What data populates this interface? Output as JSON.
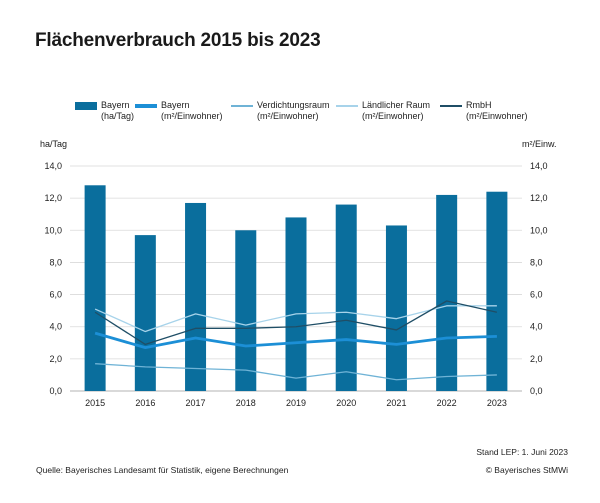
{
  "chart_data": {
    "type": "bar",
    "title": "Flächenverbrauch 2015 bis 2023",
    "categories": [
      "2015",
      "2016",
      "2017",
      "2018",
      "2019",
      "2020",
      "2021",
      "2022",
      "2023"
    ],
    "ylabel_left": "ha/Tag",
    "ylabel_right": "m²/Einw.",
    "ylim": [
      0,
      14
    ],
    "yticks": [
      "0,0",
      "2,0",
      "4,0",
      "6,0",
      "8,0",
      "10,0",
      "12,0",
      "14,0"
    ],
    "grid": true,
    "legend_position": "top",
    "bar_series": {
      "name_line1": "Bayern",
      "name_line2": "(ha/Tag)",
      "color": "#0a6e9d",
      "values": [
        12.8,
        9.7,
        11.7,
        10.0,
        10.8,
        11.6,
        10.3,
        12.2,
        12.4
      ]
    },
    "line_series": [
      {
        "name_line1": "Bayern",
        "name_line2": "(m²/Einwohner)",
        "color": "#1c8fd6",
        "width": "thick",
        "values": [
          3.6,
          2.7,
          3.3,
          2.8,
          3.0,
          3.2,
          2.9,
          3.3,
          3.4
        ]
      },
      {
        "name_line1": "Verdichtungsraum",
        "name_line2": "(m²/Einwohner)",
        "color": "#6fb3d6",
        "width": "thin",
        "values": [
          1.7,
          1.5,
          1.4,
          1.3,
          0.8,
          1.2,
          0.7,
          0.9,
          1.0
        ]
      },
      {
        "name_line1": "Ländlicher Raum",
        "name_line2": "(m²/Einwohner)",
        "color": "#a7d3ea",
        "width": "thin",
        "values": [
          5.1,
          3.7,
          4.8,
          4.1,
          4.8,
          4.9,
          4.5,
          5.3,
          5.3
        ]
      },
      {
        "name_line1": "RmbH",
        "name_line2": "(m²/Einwohner)",
        "color": "#1f4e66",
        "width": "thin",
        "values": [
          4.9,
          2.9,
          3.9,
          3.9,
          4.0,
          4.4,
          3.8,
          5.6,
          4.9
        ]
      }
    ]
  },
  "footer": {
    "source": "Quelle: Bayerisches Landesamt für Statistik, eigene Berechnungen",
    "stand": "Stand LEP: 1. Juni 2023",
    "copyright": "© Bayerisches StMWi"
  }
}
